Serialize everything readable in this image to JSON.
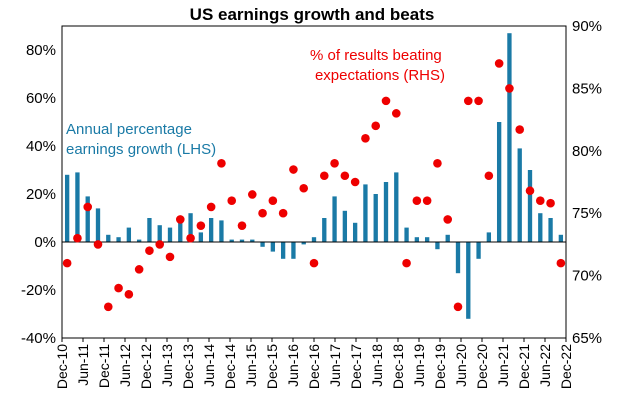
{
  "chart_data": {
    "type": "bar+scatter",
    "title": "US earnings growth and beats",
    "x_tick_labels": [
      "Dec-10",
      "Jun-11",
      "Dec-11",
      "Jun-12",
      "Dec-12",
      "Jun-13",
      "Dec-13",
      "Jun-14",
      "Dec-14",
      "Jun-15",
      "Dec-15",
      "Jun-16",
      "Dec-16",
      "Jun-17",
      "Dec-17",
      "Jun-18",
      "Dec-18",
      "Jun-19",
      "Dec-19",
      "Jun-20",
      "Dec-20",
      "Jun-21",
      "Dec-21",
      "Jun-22",
      "Dec-22"
    ],
    "left_axis": {
      "ylim": [
        -40,
        90
      ],
      "ticks": [
        "-40%",
        "-20%",
        "0%",
        "20%",
        "40%",
        "60%",
        "80%"
      ],
      "tick_values": [
        -40,
        -20,
        0,
        20,
        40,
        60,
        80
      ]
    },
    "right_axis": {
      "ylim": [
        65,
        90
      ],
      "ticks": [
        "65%",
        "70%",
        "75%",
        "80%",
        "85%",
        "90%"
      ],
      "tick_values": [
        65,
        70,
        75,
        80,
        85,
        90
      ]
    },
    "series": [
      {
        "name": "Annual percentage earnings growth (LHS)",
        "axis": "left",
        "type": "bar",
        "color": "#1a7aa6",
        "x": [
          0,
          1,
          2,
          3,
          4,
          5,
          6,
          7,
          8,
          9,
          10,
          11,
          12,
          13,
          14,
          15,
          16,
          17,
          18,
          19,
          20,
          21,
          22,
          23,
          24,
          25,
          26,
          27,
          28,
          29,
          30,
          31,
          32,
          33,
          34,
          35,
          36,
          37,
          38,
          39,
          40,
          41,
          42,
          43,
          44,
          45,
          46,
          47,
          48
        ],
        "values": [
          28,
          29,
          19,
          14,
          3,
          2,
          6,
          1,
          10,
          7,
          6,
          9,
          12,
          4,
          10,
          9,
          1,
          1,
          1,
          -2,
          -4,
          -7,
          -7,
          -1,
          2,
          10,
          19,
          13,
          8,
          24,
          20,
          25,
          29,
          6,
          2,
          2,
          -3,
          3,
          -13,
          -32,
          -7,
          4,
          50,
          87,
          39,
          30,
          12,
          10,
          3
        ]
      },
      {
        "name": "% of results beating expectations (RHS)",
        "axis": "right",
        "type": "scatter",
        "color": "#ee0000",
        "x": [
          0,
          1,
          2,
          3,
          4,
          5,
          6,
          7,
          8,
          9,
          10,
          11,
          12,
          13,
          14,
          15,
          16,
          17,
          18,
          19,
          20,
          21,
          22,
          23,
          24,
          25,
          26,
          27,
          28,
          29,
          30,
          31,
          32,
          33,
          34,
          35,
          36,
          37,
          38,
          39,
          40,
          41,
          42,
          43,
          44,
          45,
          46,
          47,
          48
        ],
        "values": [
          71,
          73,
          75.5,
          72.5,
          67.5,
          69,
          68.5,
          70.5,
          72,
          72.5,
          71.5,
          74.5,
          73,
          74,
          75.5,
          79,
          76,
          74,
          76.5,
          75,
          76,
          75,
          78.5,
          77,
          71,
          78,
          79,
          78,
          77.5,
          81,
          82,
          84,
          83,
          71,
          76,
          76,
          79,
          74.5,
          67.5,
          84,
          84,
          78,
          87,
          85,
          81.7,
          76.8,
          76,
          75.8,
          71
        ]
      }
    ],
    "annotations": [
      {
        "lines": [
          "Annual percentage",
          "earnings growth (LHS)"
        ],
        "color": "#1a7aa6"
      },
      {
        "lines": [
          "% of results beating",
          "expectations (RHS)"
        ],
        "color": "#ee0000"
      }
    ]
  }
}
